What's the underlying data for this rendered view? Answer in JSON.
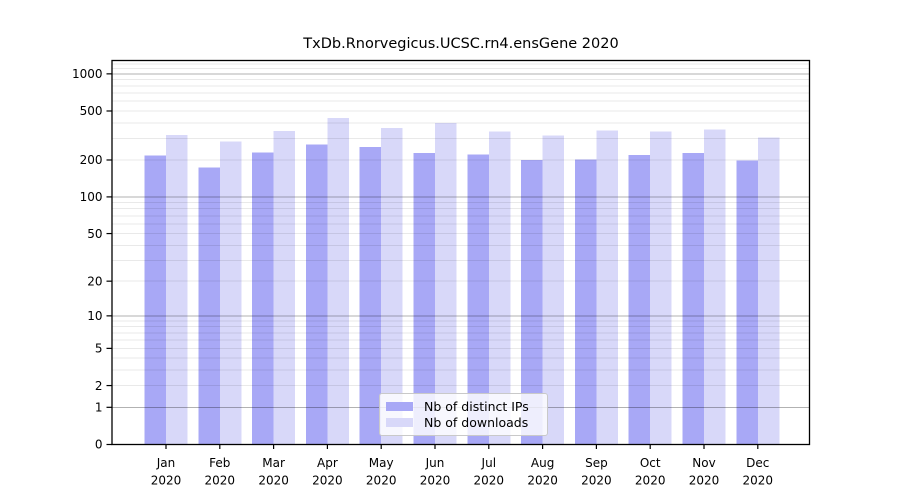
{
  "chart_data": {
    "type": "bar",
    "title": "TxDb.Rnorvegicus.UCSC.rn4.ensGene 2020",
    "categories": [
      "Jan 2020",
      "Feb 2020",
      "Mar 2020",
      "Apr 2020",
      "May 2020",
      "Jun 2020",
      "Jul 2020",
      "Aug 2020",
      "Sep 2020",
      "Oct 2020",
      "Nov 2020",
      "Dec 2020"
    ],
    "series": [
      {
        "name": "Nb of distinct IPs",
        "color": "#a8a8f6",
        "values": [
          218,
          174,
          230,
          268,
          255,
          227,
          222,
          200,
          201,
          219,
          229,
          198
        ]
      },
      {
        "name": "Nb of downloads",
        "color": "#d8d8f9",
        "values": [
          318,
          282,
          345,
          440,
          364,
          401,
          340,
          315,
          346,
          341,
          353,
          304
        ]
      }
    ],
    "yscale": "log1p",
    "yticks": [
      0,
      1,
      2,
      5,
      10,
      20,
      50,
      100,
      200,
      500,
      1000
    ],
    "ylim": [
      0,
      1283
    ],
    "xlabel": "",
    "ylabel": "",
    "grid": "horizontal",
    "legend_position": "bottom-center",
    "axis_color": "#000000",
    "background_color": "#ffffff"
  }
}
